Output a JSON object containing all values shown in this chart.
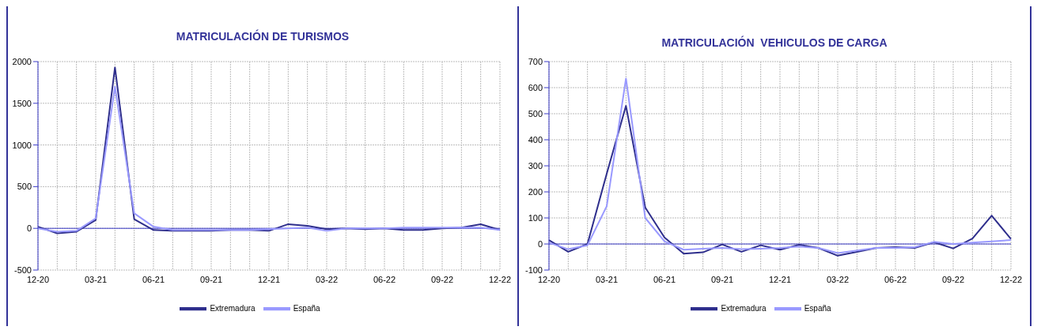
{
  "chart_data": [
    {
      "type": "line",
      "title": "MATRICULACIÓN DE TURISMOS",
      "categories": [
        "12-20",
        null,
        null,
        "03-21",
        null,
        null,
        "06-21",
        null,
        null,
        "09-21",
        null,
        null,
        "12-21",
        null,
        null,
        "03-22",
        null,
        null,
        "06-22",
        null,
        null,
        "09-22",
        null,
        null,
        "12-22"
      ],
      "series": [
        {
          "name": "Extremadura",
          "color": "#2e2e8c",
          "values": [
            20,
            -60,
            -40,
            100,
            1930,
            110,
            -20,
            -30,
            -30,
            -30,
            -20,
            -20,
            -30,
            50,
            30,
            -10,
            0,
            -10,
            0,
            -20,
            -20,
            0,
            10,
            50,
            -20
          ]
        },
        {
          "name": "España",
          "color": "#9999ff",
          "values": [
            0,
            -40,
            -30,
            120,
            1700,
            180,
            20,
            -20,
            -20,
            -20,
            -20,
            -20,
            -10,
            0,
            10,
            -30,
            0,
            0,
            0,
            10,
            10,
            10,
            10,
            10,
            -20
          ]
        }
      ],
      "ref_lines": [
        {
          "axis": "y",
          "value": 0,
          "color": "#3c3cc8"
        }
      ],
      "ylim": [
        -500,
        2000
      ],
      "yticks": [
        -500,
        0,
        500,
        1000,
        1500,
        2000
      ],
      "grid": true,
      "legend": "bottom",
      "marker": "none",
      "line_style": "solid"
    },
    {
      "type": "line",
      "title": "MATRICULACIÓN  VEHICULOS DE CARGA",
      "categories": [
        "12-20",
        null,
        null,
        "03-21",
        null,
        null,
        "06-21",
        null,
        null,
        "09-21",
        null,
        null,
        "12-21",
        null,
        null,
        "03-22",
        null,
        null,
        "06-22",
        null,
        null,
        "09-22",
        null,
        null,
        "12-22"
      ],
      "series": [
        {
          "name": "Extremadura",
          "color": "#2e2e8c",
          "values": [
            15,
            -30,
            0,
            270,
            530,
            140,
            25,
            -37,
            -32,
            -2,
            -30,
            -5,
            -22,
            -3,
            -15,
            -45,
            -30,
            -15,
            -12,
            -15,
            7,
            -17,
            21,
            109,
            19
          ]
        },
        {
          "name": "España",
          "color": "#9999ff",
          "values": [
            5,
            -20,
            -5,
            145,
            635,
            100,
            10,
            -22,
            -18,
            -15,
            -20,
            -18,
            -15,
            -10,
            -15,
            -35,
            -25,
            -15,
            -15,
            -12,
            8,
            0,
            5,
            10,
            15
          ]
        }
      ],
      "ref_lines": [
        {
          "axis": "y",
          "value": 0,
          "color": "#3c3cc8"
        }
      ],
      "ylim": [
        -100,
        700
      ],
      "yticks": [
        -100,
        0,
        100,
        200,
        300,
        400,
        500,
        600,
        700
      ],
      "grid": true,
      "legend": "bottom",
      "marker": "none",
      "line_style": "solid"
    }
  ]
}
